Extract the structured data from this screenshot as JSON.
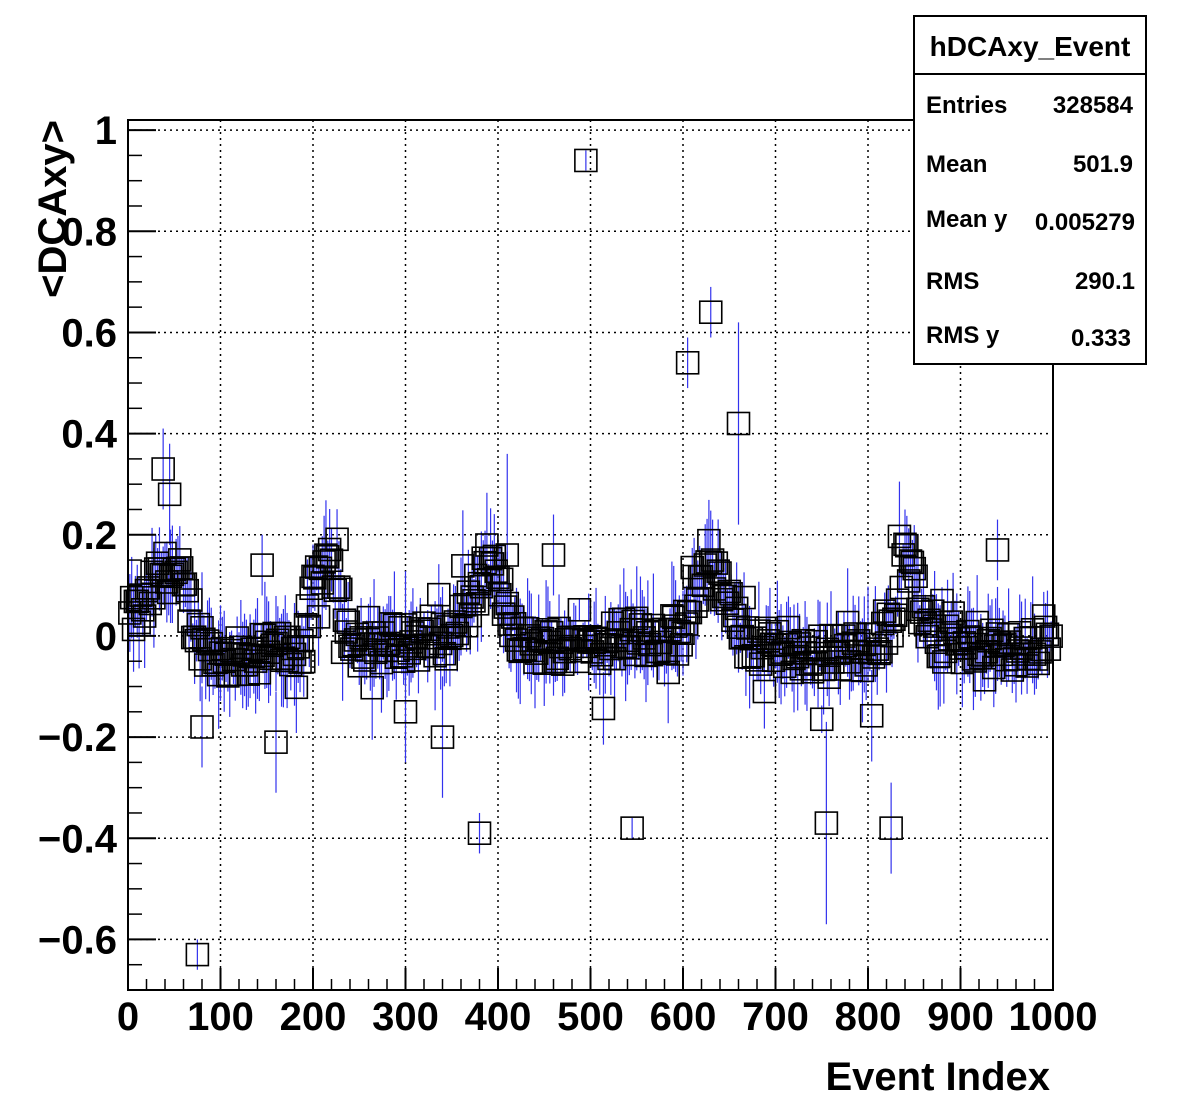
{
  "chart_data": {
    "type": "scatter",
    "title": "",
    "xlabel": "Event Index",
    "ylabel": "<DCAxy>",
    "xlim": [
      0,
      1000
    ],
    "ylim": [
      -0.7,
      1.02
    ],
    "grid": true,
    "x_ticks": [
      "0",
      "100",
      "200",
      "300",
      "400",
      "500",
      "600",
      "700",
      "800",
      "900",
      "1000"
    ],
    "y_ticks": [
      "−0.6",
      "−0.4",
      "−0.2",
      "0",
      "0.2",
      "0.4",
      "0.6",
      "0.8",
      "1"
    ],
    "marker": "open-square",
    "marker_color": "#000000",
    "error_bar_color": "#3333ee",
    "stats_box": {
      "title": "hDCAxy_Event",
      "placement": "top-right",
      "rows": [
        {
          "label": "Entries",
          "value": "328584"
        },
        {
          "label": "Mean",
          "value": "501.9"
        },
        {
          "label": "Mean y",
          "value": "0.005279"
        },
        {
          "label": "RMS",
          "value": "290.1"
        },
        {
          "label": "RMS y",
          "value": "0.333"
        }
      ]
    },
    "outliers": [
      {
        "x": 495,
        "y": 0.94,
        "err": 0.02
      },
      {
        "x": 630,
        "y": 0.64,
        "err": 0.05
      },
      {
        "x": 605,
        "y": 0.54,
        "err": 0.05
      },
      {
        "x": 660,
        "y": 0.42,
        "err": 0.2
      },
      {
        "x": 38,
        "y": 0.33,
        "err": 0.08
      },
      {
        "x": 45,
        "y": 0.28,
        "err": 0.1
      },
      {
        "x": 75,
        "y": -0.63,
        "err": 0.03
      },
      {
        "x": 380,
        "y": -0.39,
        "err": 0.04
      },
      {
        "x": 545,
        "y": -0.38,
        "err": 0.02
      },
      {
        "x": 755,
        "y": -0.37,
        "err": 0.2
      },
      {
        "x": 825,
        "y": -0.38,
        "err": 0.09
      },
      {
        "x": 340,
        "y": -0.2,
        "err": 0.12
      },
      {
        "x": 460,
        "y": 0.16,
        "err": 0.08
      },
      {
        "x": 145,
        "y": 0.14,
        "err": 0.06
      },
      {
        "x": 940,
        "y": 0.17,
        "err": 0.06
      },
      {
        "x": 80,
        "y": -0.18,
        "err": 0.08
      },
      {
        "x": 160,
        "y": -0.21,
        "err": 0.1
      },
      {
        "x": 410,
        "y": 0.16,
        "err": 0.2
      },
      {
        "x": 300,
        "y": -0.15,
        "err": 0.1
      }
    ],
    "bulk_profile": [
      {
        "x": 0,
        "y": 0.03
      },
      {
        "x": 20,
        "y": 0.06
      },
      {
        "x": 35,
        "y": 0.13
      },
      {
        "x": 55,
        "y": 0.12
      },
      {
        "x": 75,
        "y": 0.0
      },
      {
        "x": 100,
        "y": -0.05
      },
      {
        "x": 150,
        "y": -0.03
      },
      {
        "x": 190,
        "y": -0.02
      },
      {
        "x": 205,
        "y": 0.13
      },
      {
        "x": 220,
        "y": 0.15
      },
      {
        "x": 235,
        "y": 0.03
      },
      {
        "x": 250,
        "y": -0.02
      },
      {
        "x": 300,
        "y": -0.01
      },
      {
        "x": 350,
        "y": -0.01
      },
      {
        "x": 375,
        "y": 0.08
      },
      {
        "x": 390,
        "y": 0.15
      },
      {
        "x": 410,
        "y": 0.05
      },
      {
        "x": 430,
        "y": -0.02
      },
      {
        "x": 480,
        "y": -0.01
      },
      {
        "x": 500,
        "y": -0.02
      },
      {
        "x": 540,
        "y": 0.0
      },
      {
        "x": 600,
        "y": 0.0
      },
      {
        "x": 615,
        "y": 0.1
      },
      {
        "x": 630,
        "y": 0.15
      },
      {
        "x": 645,
        "y": 0.07
      },
      {
        "x": 670,
        "y": -0.01
      },
      {
        "x": 720,
        "y": -0.04
      },
      {
        "x": 800,
        "y": -0.03
      },
      {
        "x": 830,
        "y": 0.05
      },
      {
        "x": 840,
        "y": 0.16
      },
      {
        "x": 855,
        "y": 0.06
      },
      {
        "x": 880,
        "y": -0.02
      },
      {
        "x": 950,
        "y": -0.03
      },
      {
        "x": 1000,
        "y": -0.02
      }
    ],
    "bulk_spread": 0.04,
    "bulk_step": 2
  }
}
